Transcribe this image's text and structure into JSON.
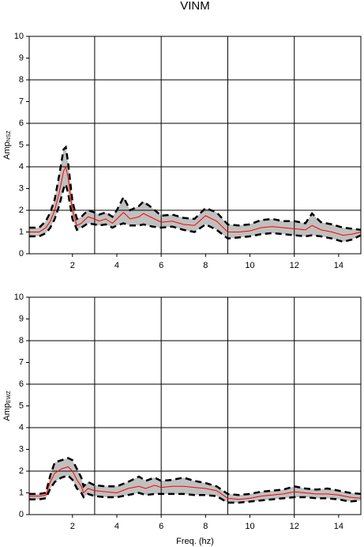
{
  "chart_data": [
    {
      "type": "line",
      "title": "VINM",
      "ylabel": "Amp",
      "ylabel_sub": "NSZ",
      "x": [
        0.05,
        0.5,
        0.8,
        1.0,
        1.2,
        1.4,
        1.6,
        1.7,
        1.8,
        2.0,
        2.2,
        2.4,
        2.7,
        3.0,
        3.2,
        3.5,
        3.8,
        4.0,
        4.3,
        4.6,
        5.0,
        5.2,
        5.6,
        6.0,
        6.5,
        7.0,
        7.5,
        8.0,
        8.5,
        9.0,
        9.5,
        10.0,
        10.5,
        11.0,
        11.5,
        12.0,
        12.5,
        12.8,
        13.2,
        13.7,
        14.2,
        14.6,
        15
      ],
      "series": [
        {
          "color": "#ff0000",
          "dashed": false,
          "values": [
            1.0,
            1.0,
            1.2,
            1.5,
            2.0,
            2.8,
            3.8,
            4.0,
            3.5,
            2.0,
            1.3,
            1.4,
            1.7,
            1.6,
            1.5,
            1.6,
            1.4,
            1.6,
            1.9,
            1.6,
            1.7,
            1.85,
            1.65,
            1.45,
            1.5,
            1.35,
            1.3,
            1.75,
            1.5,
            1.0,
            1.0,
            1.05,
            1.2,
            1.25,
            1.2,
            1.15,
            1.1,
            1.3,
            1.1,
            1.0,
            0.85,
            0.9,
            1.0
          ]
        },
        {
          "color": "#000000",
          "dashed": true,
          "values": [
            1.2,
            1.2,
            1.5,
            1.9,
            2.5,
            3.6,
            4.8,
            4.9,
            4.2,
            2.4,
            1.6,
            1.7,
            2.0,
            1.9,
            1.8,
            1.9,
            1.7,
            2.0,
            2.6,
            2.0,
            2.2,
            2.4,
            2.1,
            1.75,
            1.8,
            1.65,
            1.6,
            2.1,
            1.9,
            1.35,
            1.3,
            1.35,
            1.55,
            1.6,
            1.5,
            1.5,
            1.4,
            1.85,
            1.45,
            1.35,
            1.2,
            1.15,
            1.1
          ]
        },
        {
          "color": "#000000",
          "dashed": true,
          "values": [
            0.8,
            0.8,
            0.95,
            1.2,
            1.6,
            2.2,
            3.0,
            3.2,
            2.8,
            1.6,
            1.1,
            1.2,
            1.4,
            1.35,
            1.3,
            1.35,
            1.2,
            1.3,
            1.4,
            1.3,
            1.3,
            1.35,
            1.25,
            1.2,
            1.25,
            1.1,
            1.0,
            1.35,
            1.1,
            0.7,
            0.75,
            0.8,
            0.9,
            0.95,
            0.9,
            0.85,
            0.8,
            0.85,
            0.8,
            0.7,
            0.55,
            0.65,
            0.85
          ]
        }
      ],
      "band_color": "#c0c0c0",
      "xlim": [
        0.05,
        15
      ],
      "ylim": [
        0,
        10
      ],
      "xticks": [
        2,
        4,
        6,
        8,
        10,
        12,
        14
      ],
      "yticks": [
        0,
        1,
        2,
        3,
        4,
        5,
        6,
        7,
        8,
        9,
        10
      ],
      "xgrid": [
        3,
        6,
        9,
        12
      ],
      "ygrid": [
        2,
        4,
        6,
        8
      ]
    },
    {
      "type": "line",
      "ylabel": "Amp",
      "ylabel_sub": "EWZ",
      "xlabel": "Freq. (hz)",
      "x": [
        0.05,
        0.5,
        0.8,
        1.0,
        1.2,
        1.5,
        1.8,
        2.0,
        2.2,
        2.4,
        2.5,
        2.7,
        3.0,
        3.5,
        4.0,
        4.5,
        5.0,
        5.3,
        5.7,
        6.0,
        6.5,
        7.0,
        7.5,
        8.0,
        8.5,
        9.0,
        9.5,
        10.0,
        10.5,
        11.0,
        11.5,
        12.0,
        12.5,
        13.0,
        13.5,
        14.0,
        14.5,
        15
      ],
      "series": [
        {
          "color": "#ff0000",
          "dashed": false,
          "values": [
            0.85,
            0.85,
            0.9,
            1.5,
            1.9,
            2.1,
            2.2,
            2.0,
            1.6,
            1.3,
            1.0,
            1.2,
            1.1,
            1.05,
            1.0,
            1.2,
            1.3,
            1.2,
            1.35,
            1.25,
            1.3,
            1.3,
            1.25,
            1.2,
            1.1,
            0.75,
            0.7,
            0.75,
            0.85,
            0.9,
            0.95,
            1.05,
            1.0,
            0.95,
            0.95,
            0.9,
            0.8,
            0.75
          ]
        },
        {
          "color": "#000000",
          "dashed": true,
          "values": [
            0.95,
            0.95,
            1.0,
            1.8,
            2.4,
            2.5,
            2.6,
            2.5,
            2.1,
            1.7,
            1.3,
            1.5,
            1.35,
            1.3,
            1.3,
            1.5,
            1.75,
            1.55,
            1.7,
            1.55,
            1.6,
            1.7,
            1.55,
            1.45,
            1.3,
            0.95,
            0.9,
            0.95,
            1.05,
            1.1,
            1.15,
            1.3,
            1.2,
            1.15,
            1.2,
            1.1,
            1.0,
            0.95
          ]
        },
        {
          "color": "#000000",
          "dashed": true,
          "values": [
            0.7,
            0.7,
            0.75,
            1.2,
            1.5,
            1.7,
            1.8,
            1.6,
            1.2,
            1.0,
            0.8,
            0.95,
            0.85,
            0.8,
            0.8,
            0.9,
            1.0,
            0.9,
            0.95,
            0.95,
            0.95,
            0.95,
            0.9,
            0.9,
            0.85,
            0.55,
            0.55,
            0.6,
            0.65,
            0.7,
            0.75,
            0.8,
            0.8,
            0.75,
            0.75,
            0.7,
            0.6,
            0.65
          ]
        }
      ],
      "band_color": "#c0c0c0",
      "xlim": [
        0.05,
        15
      ],
      "ylim": [
        0,
        10
      ],
      "xticks": [
        2,
        4,
        6,
        8,
        10,
        12,
        14
      ],
      "yticks": [
        0,
        1,
        2,
        3,
        4,
        5,
        6,
        7,
        8,
        9,
        10
      ],
      "xgrid": [
        3,
        6,
        9,
        12
      ],
      "ygrid": [
        2,
        4,
        6,
        8
      ]
    }
  ]
}
